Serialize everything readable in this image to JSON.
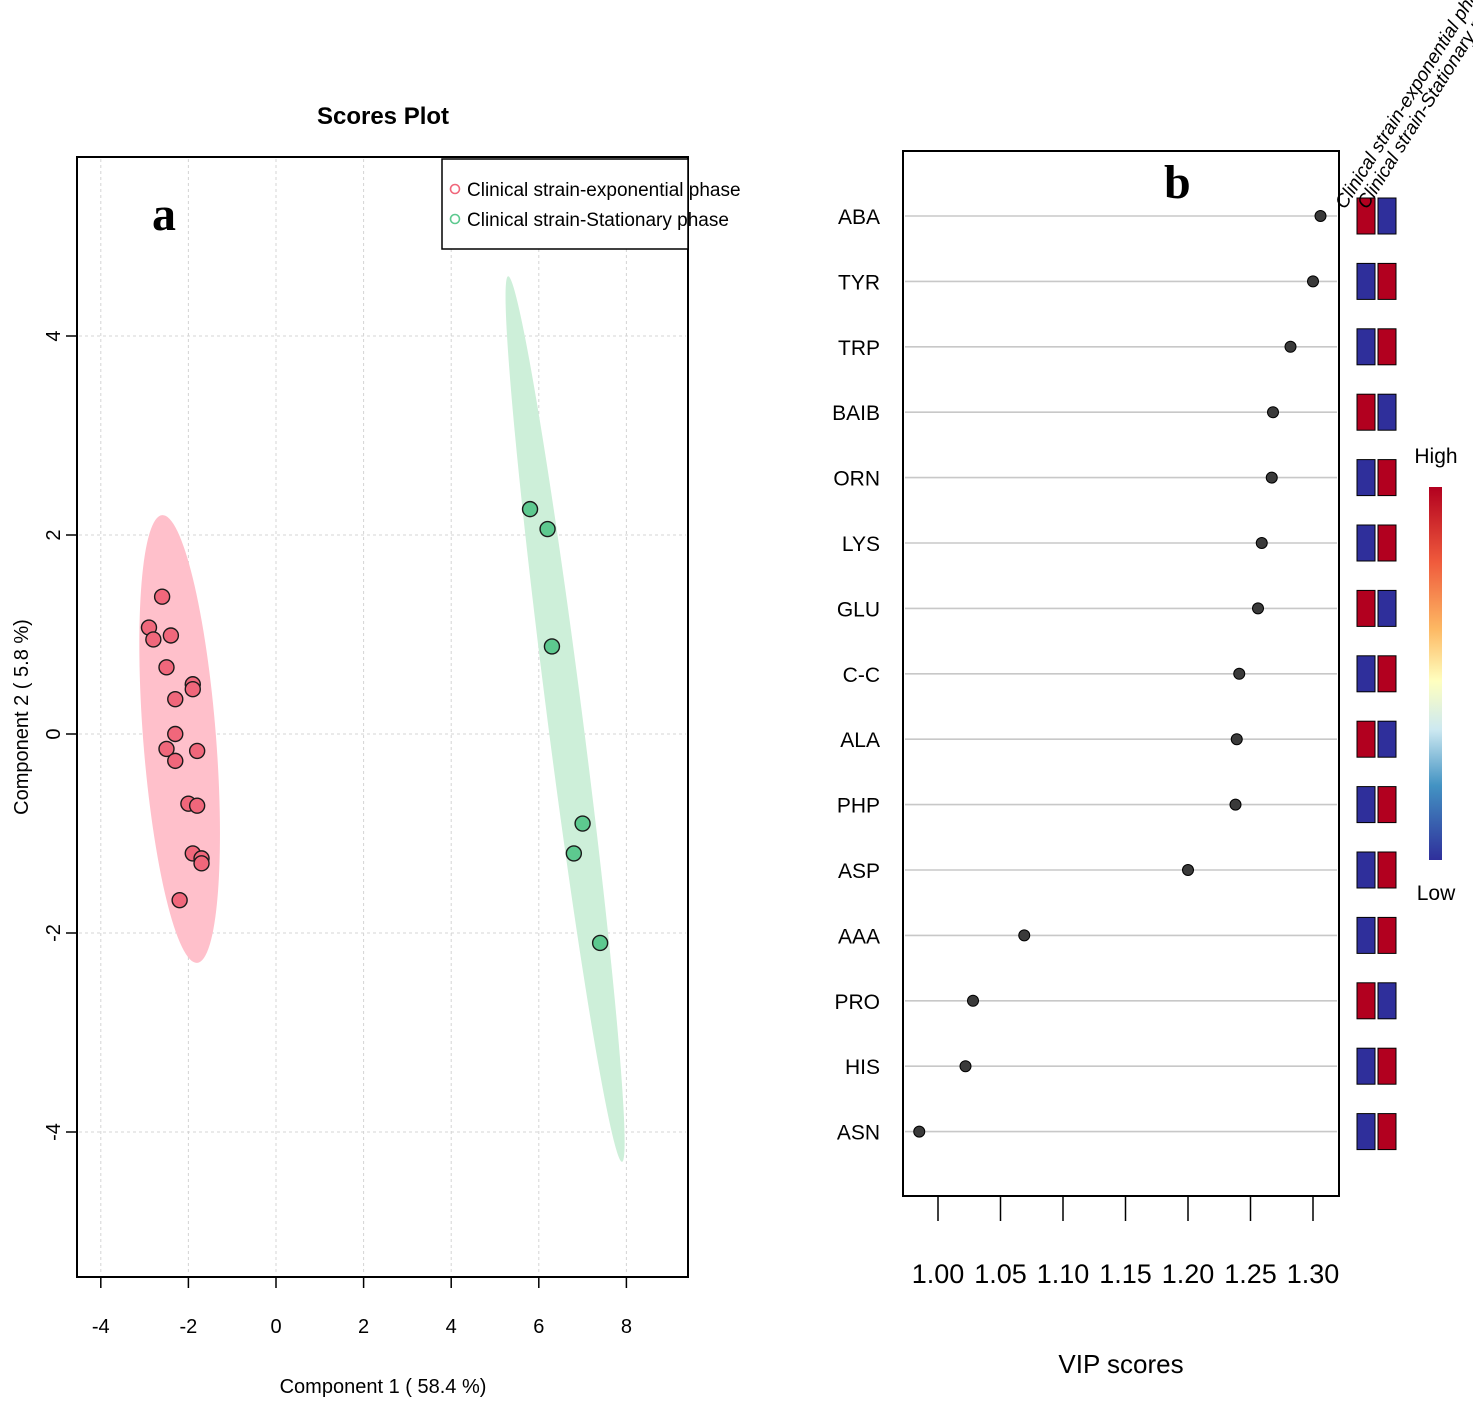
{
  "chart_data": [
    {
      "type": "scatter",
      "panel_label": "a",
      "title": "Scores Plot",
      "xlabel": "Component 1 ( 58.4 %)",
      "ylabel": "Component 2 ( 5.8 %)",
      "xlim": [
        -4.5,
        9.5
      ],
      "ylim": [
        -5.4,
        5.8
      ],
      "xticks": [
        "-4",
        "-2",
        "0",
        "2",
        "4",
        "6",
        "8"
      ],
      "yticks": [
        "4",
        "2",
        "0",
        "-2",
        "-4"
      ],
      "grid": true,
      "legend_position": "top-right",
      "series": [
        {
          "name": "Clinical strain-exponential phase",
          "color": "#f0677b",
          "ellipse_color": "#ffc0cb",
          "ellipse": {
            "cx": -2.2,
            "cy": -0.05,
            "ax_end": [
              -2.6,
              2.2
            ],
            "bx_end": [
              -1.4,
              0.05
            ]
          },
          "points": [
            [
              -2.6,
              1.38
            ],
            [
              -2.9,
              1.07
            ],
            [
              -2.8,
              0.95
            ],
            [
              -2.4,
              0.99
            ],
            [
              -2.5,
              0.67
            ],
            [
              -1.9,
              0.5
            ],
            [
              -1.9,
              0.45
            ],
            [
              -2.3,
              0.35
            ],
            [
              -2.3,
              0.0
            ],
            [
              -2.5,
              -0.15
            ],
            [
              -1.8,
              -0.17
            ],
            [
              -2.3,
              -0.27
            ],
            [
              -2.0,
              -0.7
            ],
            [
              -1.8,
              -0.72
            ],
            [
              -1.9,
              -1.2
            ],
            [
              -1.7,
              -1.25
            ],
            [
              -1.7,
              -1.3
            ],
            [
              -2.2,
              -1.67
            ]
          ]
        },
        {
          "name": "Clinical strain-Stationary phase",
          "color": "#5dc98f",
          "ellipse_color": "#cdefd9",
          "ellipse": {
            "cx": 6.6,
            "cy": 0.15,
            "ax_end": [
              5.3,
              4.6
            ],
            "bx_end": [
              6.93,
              0.25
            ]
          },
          "points": [
            [
              5.8,
              2.26
            ],
            [
              6.2,
              2.06
            ],
            [
              6.3,
              0.88
            ],
            [
              7.0,
              -0.9
            ],
            [
              6.8,
              -1.2
            ],
            [
              7.4,
              -2.1
            ]
          ]
        }
      ]
    },
    {
      "type": "dot",
      "panel_label": "b",
      "xlabel": "VIP scores",
      "xlim": [
        0.985,
        1.32
      ],
      "xticks": [
        "1.00",
        "1.05",
        "1.10",
        "1.15",
        "1.20",
        "1.25",
        "1.30"
      ],
      "columns": [
        "Clinical strain-exponential phase",
        "Clinical strain-Stationary phase"
      ],
      "colorbar": {
        "high_label": "High",
        "low_label": "Low",
        "high_color": "#b2001f",
        "low_color": "#2f2f9b"
      },
      "metabolites": [
        {
          "name": "ABA",
          "vip": 1.306,
          "cells": [
            "high",
            "low"
          ]
        },
        {
          "name": "TYR",
          "vip": 1.3,
          "cells": [
            "low",
            "high"
          ]
        },
        {
          "name": "TRP",
          "vip": 1.282,
          "cells": [
            "low",
            "high"
          ]
        },
        {
          "name": "BAIB",
          "vip": 1.268,
          "cells": [
            "high",
            "low"
          ]
        },
        {
          "name": "ORN",
          "vip": 1.267,
          "cells": [
            "low",
            "high"
          ]
        },
        {
          "name": "LYS",
          "vip": 1.259,
          "cells": [
            "low",
            "high"
          ]
        },
        {
          "name": "GLU",
          "vip": 1.256,
          "cells": [
            "high",
            "low"
          ]
        },
        {
          "name": "C-C",
          "vip": 1.241,
          "cells": [
            "low",
            "high"
          ]
        },
        {
          "name": "ALA",
          "vip": 1.239,
          "cells": [
            "high",
            "low"
          ]
        },
        {
          "name": "PHP",
          "vip": 1.238,
          "cells": [
            "low",
            "high"
          ]
        },
        {
          "name": "ASP",
          "vip": 1.2,
          "cells": [
            "low",
            "high"
          ]
        },
        {
          "name": "AAA",
          "vip": 1.069,
          "cells": [
            "low",
            "high"
          ]
        },
        {
          "name": "PRO",
          "vip": 1.028,
          "cells": [
            "high",
            "low"
          ]
        },
        {
          "name": "HIS",
          "vip": 1.022,
          "cells": [
            "low",
            "high"
          ]
        },
        {
          "name": "ASN",
          "vip": 0.985,
          "cells": [
            "low",
            "high"
          ]
        }
      ]
    }
  ]
}
